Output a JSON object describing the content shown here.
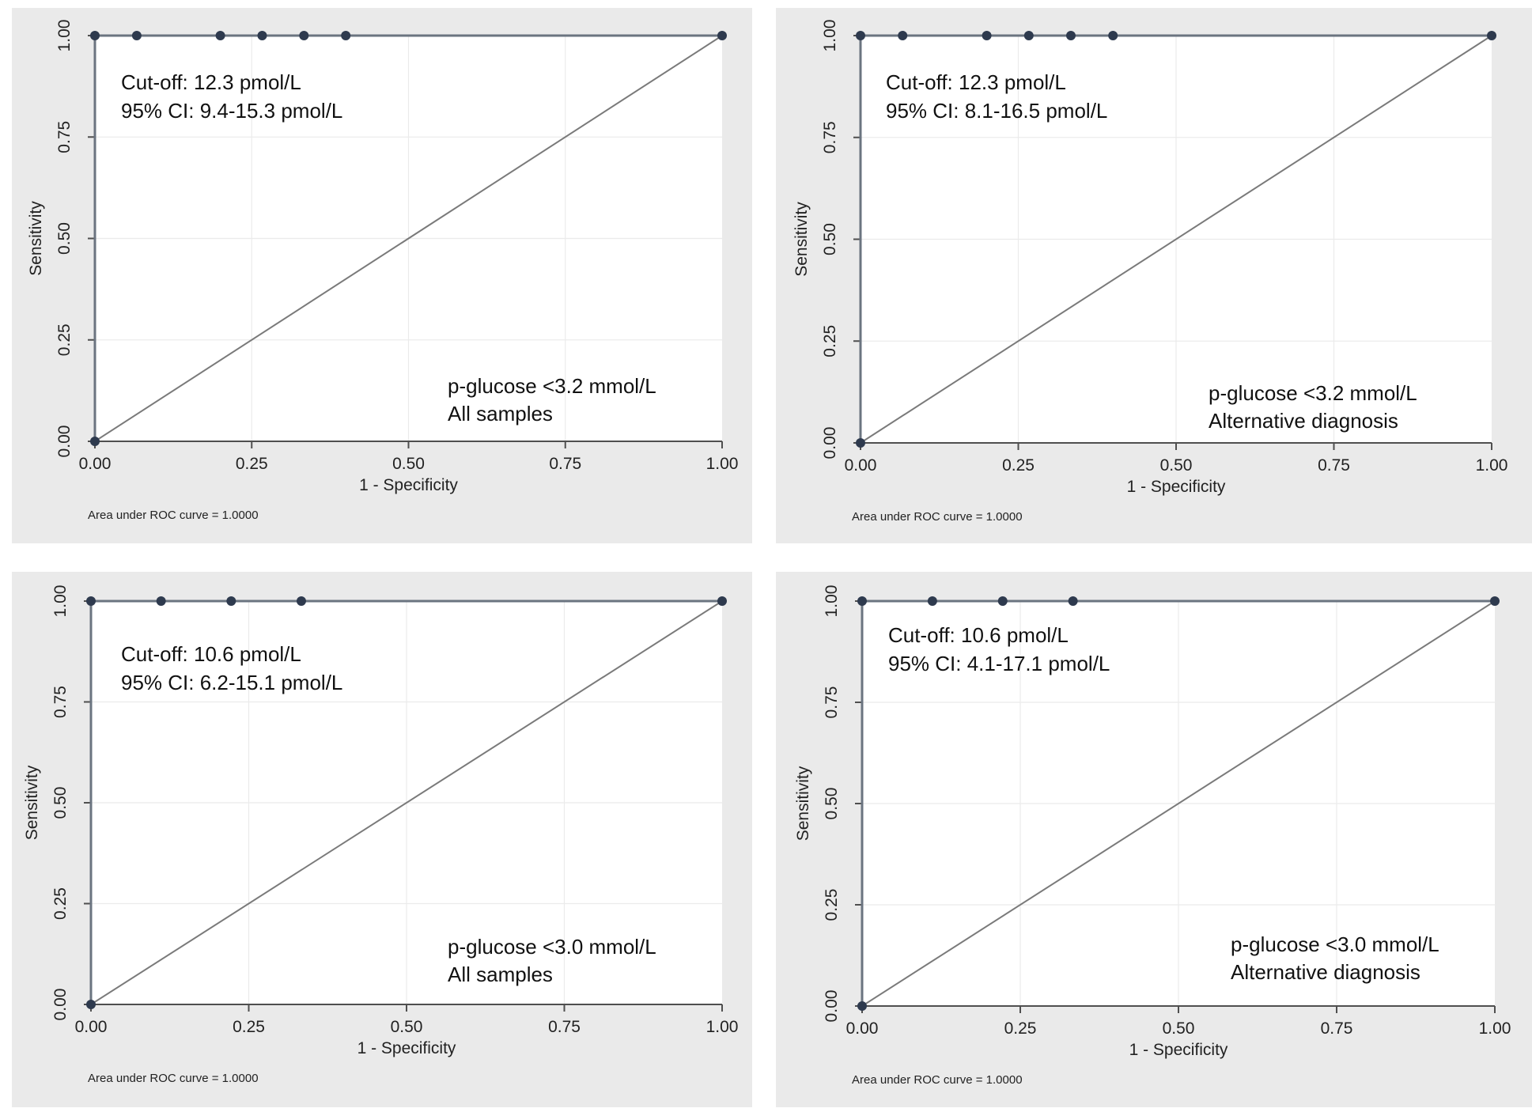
{
  "chart_data": [
    {
      "type": "line",
      "title": "",
      "xlabel": "1 - Specificity",
      "ylabel": "Sensitivity",
      "xlim": [
        0,
        1
      ],
      "ylim": [
        0,
        1
      ],
      "x_ticks": [
        "0.00",
        "0.25",
        "0.50",
        "0.75",
        "1.00"
      ],
      "y_ticks": [
        "0.00",
        "0.25",
        "0.50",
        "0.75",
        "1.00"
      ],
      "grid": true,
      "series": [
        {
          "name": "ROC curve",
          "x": [
            0,
            0,
            0.0667,
            0.2,
            0.2667,
            0.3333,
            0.4,
            1
          ],
          "y": [
            0,
            1,
            1,
            1,
            1,
            1,
            1,
            1
          ]
        },
        {
          "name": "Reference line",
          "x": [
            0,
            1
          ],
          "y": [
            0,
            1
          ]
        }
      ],
      "annotations": {
        "cutoff": "Cut-off: 12.3 pmol/L",
        "ci": "95% CI: 9.4-15.3 pmol/L",
        "condition": "p-glucose <3.2 mmol/L",
        "group": "All samples"
      },
      "auc_note": "Area under ROC curve = 1.0000"
    },
    {
      "type": "line",
      "title": "",
      "xlabel": "1 - Specificity",
      "ylabel": "Sensitivity",
      "xlim": [
        0,
        1
      ],
      "ylim": [
        0,
        1
      ],
      "x_ticks": [
        "0.00",
        "0.25",
        "0.50",
        "0.75",
        "1.00"
      ],
      "y_ticks": [
        "0.00",
        "0.25",
        "0.50",
        "0.75",
        "1.00"
      ],
      "grid": true,
      "series": [
        {
          "name": "ROC curve",
          "x": [
            0,
            0,
            0.0667,
            0.2,
            0.2667,
            0.3333,
            0.4,
            1
          ],
          "y": [
            0,
            1,
            1,
            1,
            1,
            1,
            1,
            1
          ]
        },
        {
          "name": "Reference line",
          "x": [
            0,
            1
          ],
          "y": [
            0,
            1
          ]
        }
      ],
      "annotations": {
        "cutoff": "Cut-off: 12.3 pmol/L",
        "ci": "95% CI: 8.1-16.5 pmol/L",
        "condition": "p-glucose <3.2 mmol/L",
        "group": "Alternative diagnosis"
      },
      "auc_note": "Area under ROC curve = 1.0000"
    },
    {
      "type": "line",
      "title": "",
      "xlabel": "1 - Specificity",
      "ylabel": "Sensitivity",
      "xlim": [
        0,
        1
      ],
      "ylim": [
        0,
        1
      ],
      "x_ticks": [
        "0.00",
        "0.25",
        "0.50",
        "0.75",
        "1.00"
      ],
      "y_ticks": [
        "0.00",
        "0.25",
        "0.50",
        "0.75",
        "1.00"
      ],
      "grid": true,
      "series": [
        {
          "name": "ROC curve",
          "x": [
            0,
            0,
            0.1111,
            0.2222,
            0.3333,
            1
          ],
          "y": [
            0,
            1,
            1,
            1,
            1,
            1
          ]
        },
        {
          "name": "Reference line",
          "x": [
            0,
            1
          ],
          "y": [
            0,
            1
          ]
        }
      ],
      "annotations": {
        "cutoff": "Cut-off: 10.6 pmol/L",
        "ci": "95% CI: 6.2-15.1 pmol/L",
        "condition": "p-glucose <3.0 mmol/L",
        "group": "All samples"
      },
      "auc_note": "Area under ROC curve = 1.0000"
    },
    {
      "type": "line",
      "title": "",
      "xlabel": "1 - Specificity",
      "ylabel": "Sensitivity",
      "xlim": [
        0,
        1
      ],
      "ylim": [
        0,
        1
      ],
      "x_ticks": [
        "0.00",
        "0.25",
        "0.50",
        "0.75",
        "1.00"
      ],
      "y_ticks": [
        "0.00",
        "0.25",
        "0.50",
        "0.75",
        "1.00"
      ],
      "grid": true,
      "series": [
        {
          "name": "ROC curve",
          "x": [
            0,
            0,
            0.1111,
            0.2222,
            0.3333,
            1
          ],
          "y": [
            0,
            1,
            1,
            1,
            1,
            1
          ]
        },
        {
          "name": "Reference line",
          "x": [
            0,
            1
          ],
          "y": [
            0,
            1
          ]
        }
      ],
      "annotations": {
        "cutoff": "Cut-off: 10.6 pmol/L",
        "ci": "95% CI: 4.1-17.1 pmol/L",
        "condition": "p-glucose <3.0 mmol/L",
        "group": "Alternative diagnosis"
      },
      "auc_note": "Area under ROC curve = 1.0000"
    }
  ]
}
